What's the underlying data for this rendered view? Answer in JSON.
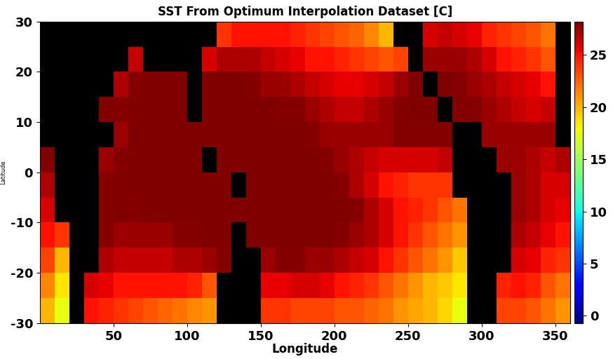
{
  "chart_data": {
    "type": "heatmap",
    "title": "SST From Optimum Interpolation Dataset [C]",
    "xlabel": "Longitude",
    "ylabel": "Latitude",
    "xlim": [
      0,
      360
    ],
    "ylim": [
      -30,
      30
    ],
    "xticks": [
      50,
      100,
      150,
      200,
      250,
      300,
      350
    ],
    "yticks": [
      -30,
      -20,
      -10,
      0,
      10,
      20,
      30
    ],
    "x_edges": [
      0,
      10,
      20,
      30,
      40,
      50,
      60,
      70,
      80,
      90,
      100,
      110,
      120,
      130,
      140,
      150,
      160,
      170,
      180,
      190,
      200,
      210,
      220,
      230,
      240,
      250,
      260,
      270,
      280,
      290,
      300,
      310,
      320,
      330,
      340,
      350,
      360
    ],
    "y_edges": [
      -30,
      -25,
      -20,
      -15,
      -10,
      -5,
      0,
      5,
      10,
      15,
      20,
      25,
      30
    ],
    "cells": [
      [
        20,
        17.5,
        null,
        25,
        24.5,
        24,
        23.5,
        23,
        22.5,
        22,
        21.5,
        21,
        null,
        null,
        null,
        24,
        24,
        23.5,
        23.5,
        23.5,
        23,
        23,
        22.5,
        22,
        21,
        20.5,
        20,
        19,
        17.5,
        null,
        null,
        23.5,
        23.5,
        23,
        22,
        21
      ],
      [
        21.5,
        18.5,
        null,
        26,
        25.5,
        25,
        25,
        25,
        25,
        25,
        24.5,
        23,
        null,
        null,
        null,
        25.5,
        25.5,
        26,
        26,
        25.5,
        25,
        24.5,
        24,
        23,
        22,
        21,
        20,
        19.5,
        18.5,
        null,
        null,
        24.5,
        25,
        24.5,
        23,
        22
      ],
      [
        23.5,
        20,
        null,
        null,
        27,
        26.5,
        26.5,
        26.5,
        26.5,
        27,
        27,
        27.5,
        28,
        null,
        null,
        27.5,
        28,
        28,
        27.5,
        27.5,
        27,
        26.5,
        26,
        25,
        24,
        23,
        22,
        21,
        19.5,
        null,
        null,
        null,
        26,
        25.5,
        24.5,
        24
      ],
      [
        25,
        24,
        null,
        null,
        28,
        27.5,
        27.5,
        27.5,
        27.5,
        28,
        28,
        28.5,
        29,
        null,
        29,
        29,
        29,
        29,
        29,
        28.5,
        28,
        27.5,
        27,
        26,
        25,
        24,
        23,
        22,
        21,
        null,
        null,
        null,
        27,
        26.5,
        25.5,
        25
      ],
      [
        26,
        null,
        null,
        null,
        28,
        28.5,
        28,
        28.5,
        28.5,
        28.5,
        29,
        29,
        29.5,
        29.5,
        29.5,
        29.5,
        29.5,
        29.5,
        29.5,
        29,
        28.5,
        28,
        27,
        26,
        25,
        24.5,
        24,
        23,
        22,
        null,
        null,
        null,
        27.5,
        27,
        26,
        25.5
      ],
      [
        27,
        null,
        null,
        null,
        28,
        28.5,
        28.5,
        29,
        29,
        29,
        29,
        29.5,
        29.5,
        null,
        29.5,
        29.5,
        29.5,
        29.5,
        29,
        28.5,
        28,
        27,
        26,
        25,
        24.5,
        24,
        24,
        24,
        null,
        null,
        null,
        null,
        27.5,
        27,
        26,
        26
      ],
      [
        28.5,
        null,
        null,
        null,
        27.5,
        28,
        28.5,
        29,
        29,
        29,
        29,
        null,
        29.5,
        29.5,
        29.5,
        29.5,
        29.5,
        29,
        28.5,
        28,
        27.5,
        27,
        26.5,
        26,
        26,
        26,
        26,
        26.5,
        null,
        null,
        null,
        27.5,
        27.5,
        27,
        26.5,
        27
      ],
      [
        null,
        null,
        null,
        null,
        null,
        27.5,
        28.5,
        29,
        29,
        29,
        28.5,
        29,
        29,
        29.5,
        29.5,
        29.5,
        29,
        28.5,
        28,
        27.5,
        27.5,
        27.5,
        27.5,
        27.5,
        28,
        28,
        28,
        28,
        null,
        null,
        27.5,
        27.5,
        27.5,
        27.5,
        27.5,
        null
      ],
      [
        null,
        null,
        null,
        null,
        28.5,
        28,
        28.5,
        28.5,
        28.5,
        28.5,
        null,
        28.5,
        29,
        29,
        28.5,
        28.5,
        28,
        28,
        27.5,
        27,
        26.5,
        26.5,
        27,
        27.5,
        28,
        28.5,
        28.5,
        null,
        28,
        28,
        27.5,
        27,
        26.5,
        26,
        26.5,
        null
      ],
      [
        null,
        null,
        null,
        null,
        null,
        27,
        28,
        28.5,
        28.5,
        28.5,
        null,
        28.5,
        28.5,
        28.5,
        28,
        27.5,
        27.5,
        27,
        26.5,
        26,
        25.5,
        25.5,
        26,
        26.5,
        27.5,
        28.5,
        null,
        28.5,
        28,
        27.5,
        27,
        26.5,
        26,
        25.5,
        25,
        null
      ],
      [
        null,
        null,
        null,
        null,
        null,
        null,
        26.5,
        null,
        null,
        null,
        null,
        26,
        27,
        27,
        27,
        26.5,
        26,
        25.5,
        25,
        25,
        24.5,
        24,
        23.5,
        23,
        23.5,
        null,
        27.5,
        27.5,
        27.5,
        27,
        26,
        25,
        24.5,
        24,
        23,
        null
      ],
      [
        null,
        null,
        null,
        null,
        null,
        null,
        null,
        null,
        null,
        null,
        null,
        null,
        24,
        25,
        25,
        25,
        25,
        24.5,
        24,
        23.5,
        23,
        22.5,
        21.5,
        20,
        null,
        null,
        26,
        26.5,
        26,
        25.5,
        24.5,
        24,
        23.5,
        23,
        22,
        null
      ]
    ],
    "colorbar_range": [
      -0.7,
      28.2
    ],
    "colorbar_ticks": [
      0,
      5,
      10,
      15,
      20,
      25
    ]
  }
}
